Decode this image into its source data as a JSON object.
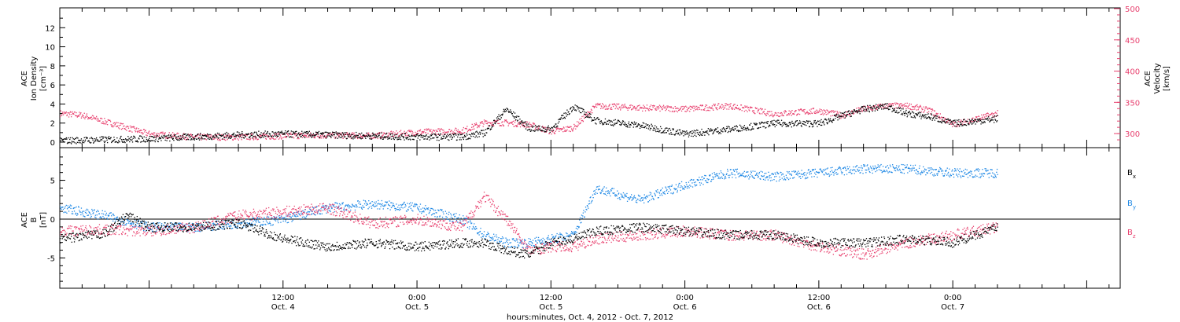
{
  "chart_data": [
    {
      "type": "scatter",
      "panel": "ion-density-velocity",
      "ylabel_left": [
        "ACE",
        "Ion Density",
        "[cm⁻³]"
      ],
      "ylabel_right": [
        "ACE",
        "Velocity",
        "[km/s]"
      ],
      "ylim_left": [
        0,
        14
      ],
      "yticks_left": [
        0,
        2,
        4,
        6,
        8,
        10,
        12
      ],
      "ylim_right": [
        280,
        500
      ],
      "yticks_right": [
        300,
        350,
        400,
        450,
        500
      ],
      "xlim_hours": [
        -8,
        87
      ],
      "series": [
        {
          "axis": "left",
          "color": "#000000",
          "x": [
            -8,
            -4,
            0,
            4,
            8,
            12,
            16,
            20,
            24,
            28,
            30,
            32,
            34,
            36,
            38,
            40,
            44,
            48,
            52,
            56,
            60,
            62,
            64,
            66,
            68,
            70,
            72,
            76
          ],
          "y": [
            0.2,
            0.3,
            0.4,
            0.6,
            0.8,
            0.9,
            0.8,
            0.7,
            0.6,
            0.6,
            1.0,
            3.5,
            1.5,
            1.4,
            3.8,
            2.3,
            1.8,
            0.9,
            1.4,
            2.0,
            2.0,
            2.8,
            3.5,
            3.8,
            3.0,
            2.7,
            2.0,
            2.5
          ]
        },
        {
          "axis": "right",
          "color": "#e8416f",
          "x": [
            -8,
            -6,
            -4,
            -2,
            0,
            4,
            8,
            12,
            16,
            20,
            24,
            28,
            30,
            32,
            34,
            36,
            38,
            40,
            44,
            48,
            52,
            56,
            58,
            60,
            62,
            64,
            66,
            68,
            70,
            72,
            76
          ],
          "y": [
            333,
            330,
            320,
            310,
            300,
            295,
            295,
            297,
            298,
            297,
            303,
            305,
            318,
            318,
            315,
            304,
            310,
            345,
            342,
            340,
            345,
            332,
            335,
            337,
            330,
            340,
            345,
            345,
            337,
            315,
            333
          ]
        }
      ]
    },
    {
      "type": "scatter",
      "panel": "magnetic-field",
      "ylabel": [
        "ACE",
        "B",
        "[nT]"
      ],
      "ylim": [
        -9,
        9
      ],
      "yticks": [
        -5,
        0,
        5
      ],
      "xlim_hours": [
        -8,
        87
      ],
      "legend": [
        "Bx",
        "By",
        "Bz"
      ],
      "series": [
        {
          "name": "Bx",
          "color": "#000000",
          "x": [
            -8,
            -4,
            -2,
            0,
            4,
            8,
            12,
            16,
            20,
            24,
            28,
            30,
            32,
            34,
            36,
            38,
            40,
            44,
            48,
            52,
            56,
            60,
            64,
            68,
            72,
            76
          ],
          "y": [
            -2.5,
            -1.8,
            0.5,
            -1.0,
            -1.0,
            -0.5,
            -2.5,
            -3.5,
            -3.0,
            -3.5,
            -3.0,
            -3.0,
            -4.0,
            -4.5,
            -3.0,
            -2.5,
            -1.5,
            -1.0,
            -1.5,
            -2.0,
            -2.0,
            -3.0,
            -3.0,
            -2.5,
            -3.0,
            -1.0
          ]
        },
        {
          "name": "By",
          "color": "#1e88e5",
          "x": [
            -8,
            -6,
            -4,
            0,
            4,
            8,
            12,
            16,
            20,
            24,
            28,
            30,
            32,
            34,
            36,
            38,
            40,
            44,
            48,
            52,
            56,
            60,
            64,
            68,
            72,
            76
          ],
          "y": [
            1.5,
            1.0,
            0.5,
            -1.0,
            -1.0,
            -0.5,
            0,
            1.5,
            2.0,
            1.5,
            0,
            -2.0,
            -3.0,
            -3.0,
            -2.5,
            -2.0,
            4.0,
            2.5,
            4.5,
            6.0,
            5.5,
            6.0,
            6.5,
            6.5,
            6.0,
            6.0
          ]
        },
        {
          "name": "Bz",
          "color": "#e8416f",
          "x": [
            -8,
            -4,
            0,
            4,
            8,
            12,
            16,
            20,
            24,
            28,
            30,
            32,
            34,
            36,
            38,
            40,
            44,
            48,
            52,
            56,
            60,
            64,
            68,
            72,
            76
          ],
          "y": [
            -1.5,
            -1.3,
            -1.5,
            -1.0,
            0.5,
            1.0,
            1.5,
            -0.5,
            0,
            -1.0,
            3.0,
            0,
            -4.0,
            -3.5,
            -3.5,
            -2.5,
            -2.0,
            -1.5,
            -2.0,
            -2.0,
            -3.5,
            -4.5,
            -3.0,
            -2.0,
            -1.0
          ]
        }
      ]
    }
  ],
  "axis": {
    "x_ticks": [
      {
        "time": "12:00",
        "date": "Oct. 4"
      },
      {
        "time": "0:00",
        "date": "Oct. 5"
      },
      {
        "time": "12:00",
        "date": "Oct. 5"
      },
      {
        "time": "0:00",
        "date": "Oct. 6"
      },
      {
        "time": "12:00",
        "date": "Oct. 6"
      },
      {
        "time": "0:00",
        "date": "Oct. 7"
      }
    ],
    "x_label": "hours:minutes, Oct.  4, 2012 - Oct.  7, 2012"
  },
  "labels": {
    "top_left": [
      "ACE",
      "Ion Density",
      "[cm⁻³]"
    ],
    "top_right": [
      "ACE",
      "Velocity",
      "[km/s]"
    ],
    "bottom_left": [
      "ACE",
      "B",
      "[nT]"
    ]
  },
  "legend": {
    "bx": "B",
    "bx_sub": "x",
    "by": "B",
    "by_sub": "y",
    "bz": "B",
    "bz_sub": "z"
  },
  "colors": {
    "density": "#000000",
    "velocity": "#e8416f",
    "bx": "#000000",
    "by": "#1e88e5",
    "bz": "#e8416f"
  }
}
